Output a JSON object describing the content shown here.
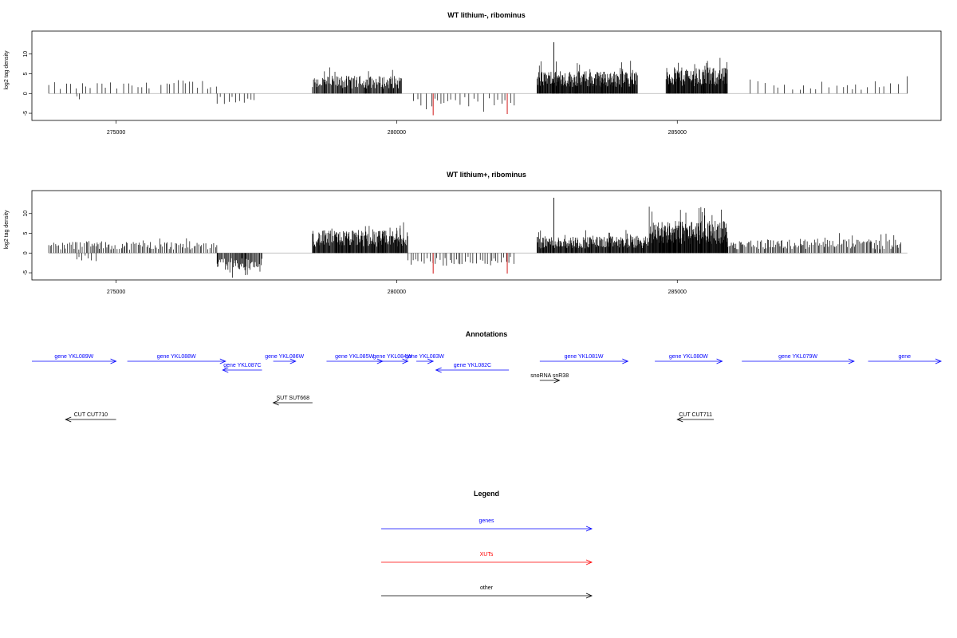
{
  "colors": {
    "gene": "#0000ff",
    "xut": "#ff0000",
    "other": "#000000",
    "zero": "#b0b0b0",
    "minus_peak": "#cc0000"
  },
  "chart_data": [
    {
      "type": "bar",
      "title": "WT lithium-, ribominus",
      "ylabel": "log2 tag density",
      "xlim": [
        273500,
        289700
      ],
      "ylim": [
        -6,
        15
      ],
      "xticks": [
        275000,
        280000,
        285000
      ],
      "yticks": [
        -5,
        0,
        5,
        10
      ],
      "segments": [
        {
          "from": 273800,
          "to": 275600,
          "level": 2.3,
          "dir": 1,
          "spacing": 90
        },
        {
          "from": 274300,
          "to": 274400,
          "level": 2.0,
          "dir": -1,
          "spacing": 60
        },
        {
          "from": 275800,
          "to": 276800,
          "level": 2.8,
          "dir": 1,
          "spacing": 80
        },
        {
          "from": 276800,
          "to": 277500,
          "level": 2.4,
          "dir": -1,
          "spacing": 60
        },
        {
          "from": 278500,
          "to": 280100,
          "level": 3.6,
          "dir": 1,
          "spacing": 12
        },
        {
          "from": 280300,
          "to": 282100,
          "level": 2.6,
          "dir": -1,
          "spacing": 70
        },
        {
          "from": 282500,
          "to": 284300,
          "level": 4.6,
          "dir": 1,
          "spacing": 8
        },
        {
          "from": 284800,
          "to": 285900,
          "level": 5.3,
          "dir": 1,
          "spacing": 8
        },
        {
          "from": 286300,
          "to": 289100,
          "level": 2.6,
          "dir": 1,
          "spacing": 110
        }
      ],
      "peaks": [
        {
          "x": 282800,
          "y": 13,
          "color": "#000000"
        },
        {
          "x": 280650,
          "y": -5.5,
          "color": "#cc0000"
        },
        {
          "x": 281970,
          "y": -5.2,
          "color": "#cc0000"
        }
      ]
    },
    {
      "type": "bar",
      "title": "WT lithium+, ribominus",
      "ylabel": "log2 tag density",
      "xlim": [
        273500,
        289700
      ],
      "ylim": [
        -6,
        15
      ],
      "xticks": [
        275000,
        280000,
        285000
      ],
      "yticks": [
        -5,
        0,
        5,
        10
      ],
      "segments": [
        {
          "from": 273800,
          "to": 276800,
          "level": 2.4,
          "dir": 1,
          "spacing": 28
        },
        {
          "from": 274300,
          "to": 274700,
          "level": 1.8,
          "dir": -1,
          "spacing": 60
        },
        {
          "from": 276800,
          "to": 277600,
          "level": 3.5,
          "dir": -1,
          "spacing": 14
        },
        {
          "from": 278500,
          "to": 280200,
          "level": 4.6,
          "dir": 1,
          "spacing": 9
        },
        {
          "from": 280200,
          "to": 282100,
          "level": 2.6,
          "dir": -1,
          "spacing": 45
        },
        {
          "from": 282500,
          "to": 284500,
          "level": 3.4,
          "dir": 1,
          "spacing": 9
        },
        {
          "from": 284500,
          "to": 285900,
          "level": 6.5,
          "dir": 1,
          "spacing": 7
        },
        {
          "from": 285900,
          "to": 289000,
          "level": 2.8,
          "dir": 1,
          "spacing": 22
        }
      ],
      "peaks": [
        {
          "x": 282800,
          "y": 14,
          "color": "#000000"
        },
        {
          "x": 280650,
          "y": -5.2,
          "color": "#cc0000"
        },
        {
          "x": 281970,
          "y": -5.2,
          "color": "#cc0000"
        }
      ]
    }
  ],
  "annotations": {
    "title": "Annotations",
    "xlim": [
      273500,
      289700
    ],
    "features": [
      {
        "label": "gene YKL089W",
        "start": 273500,
        "end": 275000,
        "strand": "+",
        "row": 0,
        "kind": "gene"
      },
      {
        "label": "gene YKL088W",
        "start": 275200,
        "end": 276950,
        "strand": "+",
        "row": 0,
        "kind": "gene"
      },
      {
        "label": "gene YKL087C",
        "start": 276900,
        "end": 277600,
        "strand": "-",
        "row": 1,
        "kind": "gene"
      },
      {
        "label": "gene YKL086W",
        "start": 277800,
        "end": 278200,
        "strand": "+",
        "row": 0,
        "kind": "gene"
      },
      {
        "label": "gene YKL085W",
        "start": 278750,
        "end": 279750,
        "strand": "+",
        "row": 0,
        "kind": "gene"
      },
      {
        "label": "gene YKL084W",
        "start": 279650,
        "end": 280200,
        "strand": "+",
        "row": 0,
        "kind": "gene"
      },
      {
        "label": "gene YKL083W",
        "start": 280350,
        "end": 280650,
        "strand": "+",
        "row": 0,
        "kind": "gene"
      },
      {
        "label": "gene YKL082C",
        "start": 280700,
        "end": 282000,
        "strand": "-",
        "row": 1,
        "kind": "gene"
      },
      {
        "label": "gene YKL081W",
        "start": 282550,
        "end": 284120,
        "strand": "+",
        "row": 0,
        "kind": "gene"
      },
      {
        "label": "gene YKL080W",
        "start": 284600,
        "end": 285800,
        "strand": "+",
        "row": 0,
        "kind": "gene"
      },
      {
        "label": "gene YKL079W",
        "start": 286150,
        "end": 288150,
        "strand": "+",
        "row": 0,
        "kind": "gene"
      },
      {
        "label": "gene",
        "start": 288400,
        "end": 289700,
        "strand": "+",
        "row": 0,
        "kind": "gene"
      },
      {
        "label": "snoRNA snR38",
        "start": 282550,
        "end": 282900,
        "strand": "+",
        "row": 2,
        "kind": "other"
      },
      {
        "label": "SUT SUT668",
        "start": 277800,
        "end": 278500,
        "strand": "-",
        "row": 3,
        "kind": "other"
      },
      {
        "label": "CUT CUT710",
        "start": 274100,
        "end": 275000,
        "strand": "-",
        "row": 4,
        "kind": "other"
      },
      {
        "label": "CUT CUT711",
        "start": 285000,
        "end": 285650,
        "strand": "-",
        "row": 4,
        "kind": "other"
      }
    ]
  },
  "legend": {
    "title": "Legend",
    "items": [
      {
        "label": "genes",
        "kind": "gene"
      },
      {
        "label": "XUTs",
        "kind": "xut"
      },
      {
        "label": "other",
        "kind": "other"
      }
    ]
  }
}
